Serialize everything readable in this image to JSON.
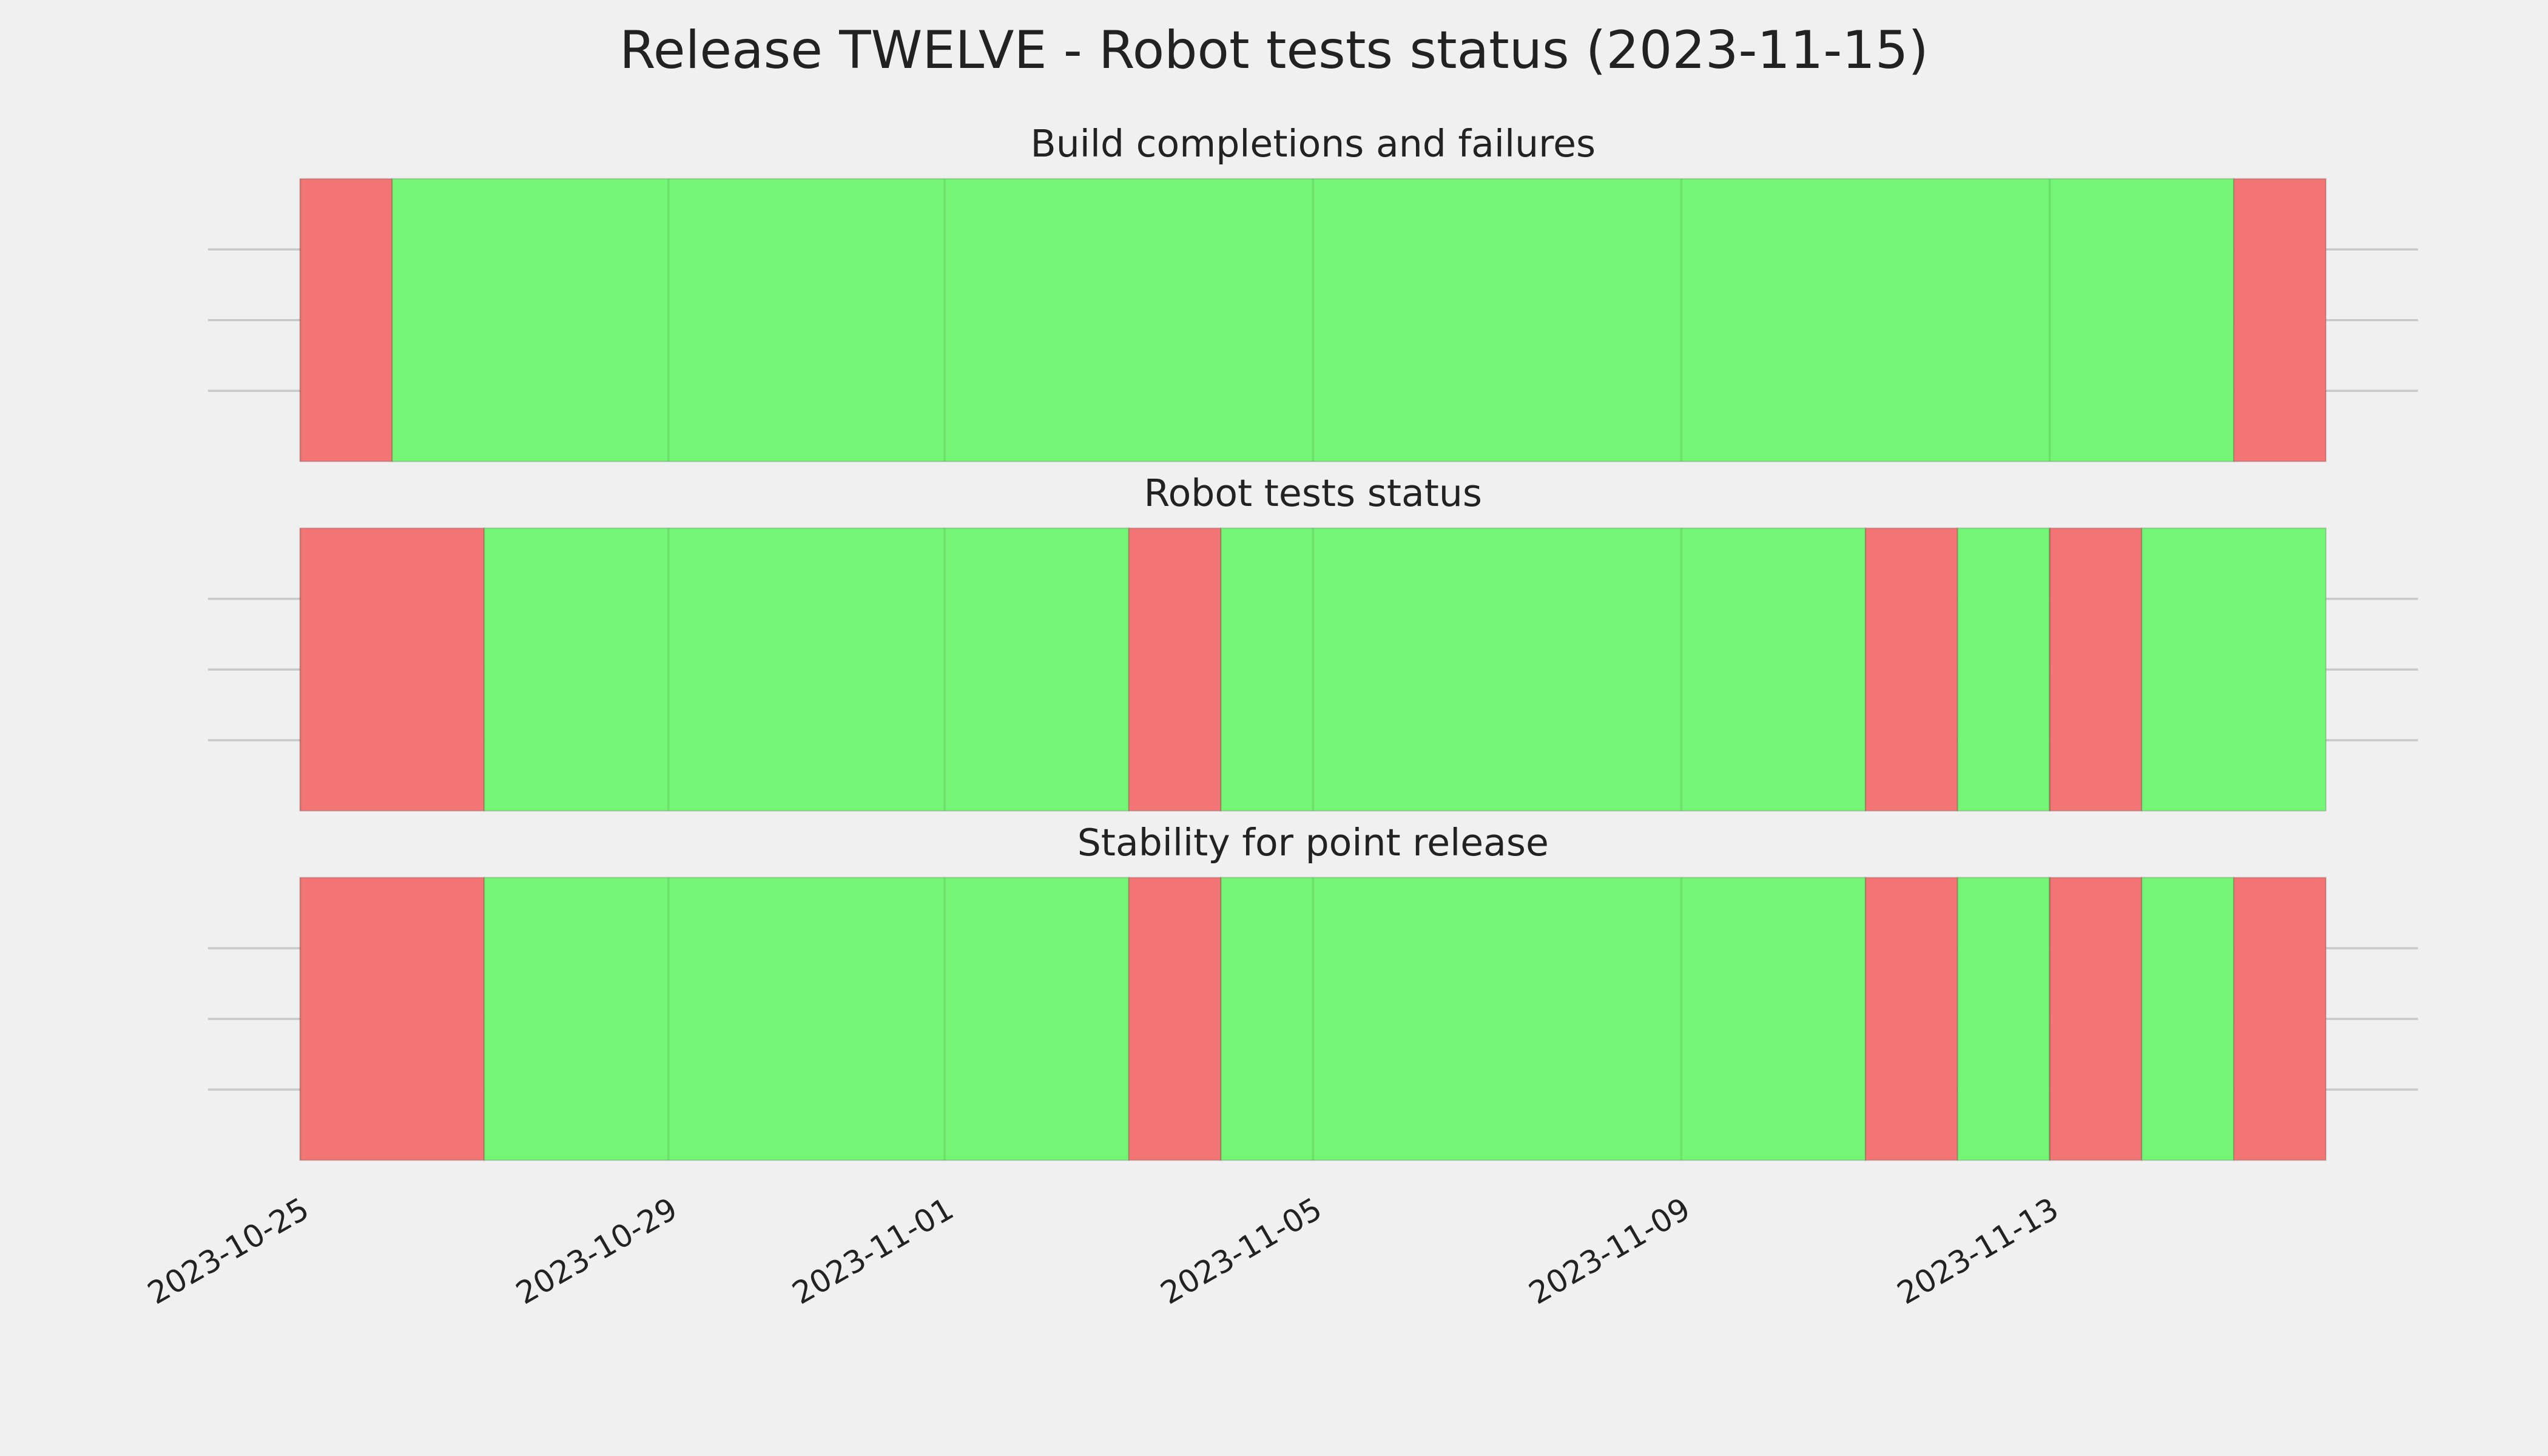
{
  "title": "Release TWELVE - Robot tests status (2023-11-15)",
  "x_axis": {
    "xlim": [
      "2023-10-24",
      "2023-11-17"
    ],
    "xticks": [
      "2023-10-25",
      "2023-10-29",
      "2023-11-01",
      "2023-11-05",
      "2023-11-09",
      "2023-11-13"
    ]
  },
  "chart_data": [
    {
      "type": "timeline",
      "title": "Build completions and failures",
      "ylim": [
        0,
        4
      ],
      "yticks": [
        1,
        2,
        3
      ],
      "grid": true,
      "spans": [
        {
          "start": "2023-10-25",
          "end": "2023-10-26",
          "color": "#f47575"
        },
        {
          "start": "2023-10-26",
          "end": "2023-11-15",
          "color": "#75f575"
        },
        {
          "start": "2023-11-15",
          "end": "2023-11-16",
          "color": "#f47575"
        }
      ]
    },
    {
      "type": "timeline",
      "title": "Robot tests status",
      "ylim": [
        0,
        4
      ],
      "yticks": [
        1,
        2,
        3
      ],
      "grid": true,
      "spans": [
        {
          "start": "2023-10-25",
          "end": "2023-10-27",
          "color": "#f47575"
        },
        {
          "start": "2023-10-27",
          "end": "2023-11-03",
          "color": "#75f575"
        },
        {
          "start": "2023-11-03",
          "end": "2023-11-04",
          "color": "#f47575"
        },
        {
          "start": "2023-11-04",
          "end": "2023-11-11",
          "color": "#75f575"
        },
        {
          "start": "2023-11-11",
          "end": "2023-11-12",
          "color": "#f47575"
        },
        {
          "start": "2023-11-12",
          "end": "2023-11-13",
          "color": "#75f575"
        },
        {
          "start": "2023-11-13",
          "end": "2023-11-14",
          "color": "#f47575"
        },
        {
          "start": "2023-11-14",
          "end": "2023-11-16",
          "color": "#75f575"
        }
      ]
    },
    {
      "type": "timeline",
      "title": "Stability for point release",
      "ylim": [
        0,
        4
      ],
      "yticks": [
        1,
        2,
        3
      ],
      "grid": true,
      "spans": [
        {
          "start": "2023-10-25",
          "end": "2023-10-27",
          "color": "#f47575"
        },
        {
          "start": "2023-10-27",
          "end": "2023-11-03",
          "color": "#75f575"
        },
        {
          "start": "2023-11-03",
          "end": "2023-11-04",
          "color": "#f47575"
        },
        {
          "start": "2023-11-04",
          "end": "2023-11-11",
          "color": "#75f575"
        },
        {
          "start": "2023-11-11",
          "end": "2023-11-12",
          "color": "#f47575"
        },
        {
          "start": "2023-11-12",
          "end": "2023-11-13",
          "color": "#75f575"
        },
        {
          "start": "2023-11-13",
          "end": "2023-11-14",
          "color": "#f47575"
        },
        {
          "start": "2023-11-14",
          "end": "2023-11-15",
          "color": "#75f575"
        },
        {
          "start": "2023-11-15",
          "end": "2023-11-16",
          "color": "#f47575"
        }
      ]
    }
  ]
}
